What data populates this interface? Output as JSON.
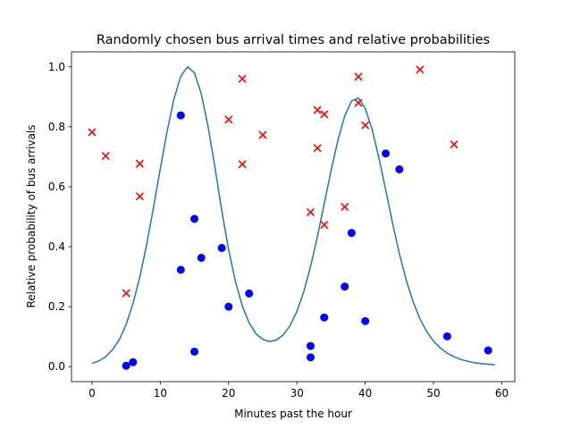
{
  "chart_data": {
    "type": "scatter",
    "title": "Randomly chosen bus arrival times and relative probabilities",
    "xlabel": "Minutes past the hour",
    "ylabel": "Relative probability of bus arrivals",
    "xlim": [
      -3.0,
      61.9
    ],
    "ylim": [
      -0.05,
      1.05
    ],
    "xticks": [
      0,
      10,
      20,
      30,
      40,
      50,
      60
    ],
    "yticks": [
      0.0,
      0.2,
      0.4,
      0.6,
      0.8,
      1.0
    ],
    "xtick_labels": [
      "0",
      "10",
      "20",
      "30",
      "40",
      "50",
      "60"
    ],
    "ytick_labels": [
      "0.0",
      "0.2",
      "0.4",
      "0.6",
      "0.8",
      "1.0"
    ],
    "grid": false,
    "colors": {
      "curve": "#1f77b4",
      "accepted": "#0000ff",
      "rejected": "#ff0000"
    },
    "curve": {
      "x": [
        0,
        1,
        2,
        3,
        4,
        5,
        6,
        7,
        8,
        9,
        10,
        11,
        12,
        13,
        14,
        15,
        16,
        17,
        18,
        19,
        20,
        21,
        22,
        23,
        24,
        25,
        26,
        27,
        28,
        29,
        30,
        31,
        32,
        33,
        34,
        35,
        36,
        37,
        38,
        39,
        40,
        41,
        42,
        43,
        44,
        45,
        46,
        47,
        48,
        49,
        50,
        51,
        52,
        53,
        54,
        55,
        56,
        57,
        58,
        59
      ],
      "y": [
        0.011,
        0.019,
        0.033,
        0.056,
        0.09,
        0.141,
        0.21,
        0.299,
        0.407,
        0.53,
        0.66,
        0.785,
        0.893,
        0.969,
        1.0,
        0.98,
        0.91,
        0.8,
        0.665,
        0.52,
        0.39,
        0.284,
        0.203,
        0.146,
        0.11,
        0.091,
        0.084,
        0.089,
        0.106,
        0.137,
        0.184,
        0.25,
        0.334,
        0.434,
        0.543,
        0.654,
        0.755,
        0.836,
        0.886,
        0.896,
        0.862,
        0.792,
        0.697,
        0.589,
        0.479,
        0.377,
        0.289,
        0.217,
        0.16,
        0.117,
        0.085,
        0.062,
        0.045,
        0.033,
        0.024,
        0.018,
        0.013,
        0.01,
        0.008,
        0.006
      ]
    },
    "accepted_points": [
      {
        "x": 5,
        "y": 0.003
      },
      {
        "x": 6,
        "y": 0.015
      },
      {
        "x": 13,
        "y": 0.838
      },
      {
        "x": 13,
        "y": 0.323
      },
      {
        "x": 15,
        "y": 0.493
      },
      {
        "x": 15,
        "y": 0.05
      },
      {
        "x": 16,
        "y": 0.363
      },
      {
        "x": 19,
        "y": 0.396
      },
      {
        "x": 20,
        "y": 0.2
      },
      {
        "x": 23,
        "y": 0.244
      },
      {
        "x": 32,
        "y": 0.069
      },
      {
        "x": 32,
        "y": 0.031
      },
      {
        "x": 34,
        "y": 0.164
      },
      {
        "x": 37,
        "y": 0.267
      },
      {
        "x": 38,
        "y": 0.446
      },
      {
        "x": 40,
        "y": 0.152
      },
      {
        "x": 43,
        "y": 0.711
      },
      {
        "x": 45,
        "y": 0.658
      },
      {
        "x": 52,
        "y": 0.101
      },
      {
        "x": 58,
        "y": 0.054
      }
    ],
    "rejected_points": [
      {
        "x": 0,
        "y": 0.782
      },
      {
        "x": 2,
        "y": 0.703
      },
      {
        "x": 5,
        "y": 0.245
      },
      {
        "x": 7,
        "y": 0.677
      },
      {
        "x": 7,
        "y": 0.568
      },
      {
        "x": 20,
        "y": 0.824
      },
      {
        "x": 22,
        "y": 0.96
      },
      {
        "x": 22,
        "y": 0.675
      },
      {
        "x": 25,
        "y": 0.773
      },
      {
        "x": 32,
        "y": 0.515
      },
      {
        "x": 33,
        "y": 0.856
      },
      {
        "x": 33,
        "y": 0.729
      },
      {
        "x": 34,
        "y": 0.842
      },
      {
        "x": 34,
        "y": 0.473
      },
      {
        "x": 37,
        "y": 0.533
      },
      {
        "x": 39,
        "y": 0.967
      },
      {
        "x": 39,
        "y": 0.88
      },
      {
        "x": 40,
        "y": 0.805
      },
      {
        "x": 48,
        "y": 0.991
      },
      {
        "x": 53,
        "y": 0.741
      }
    ]
  }
}
